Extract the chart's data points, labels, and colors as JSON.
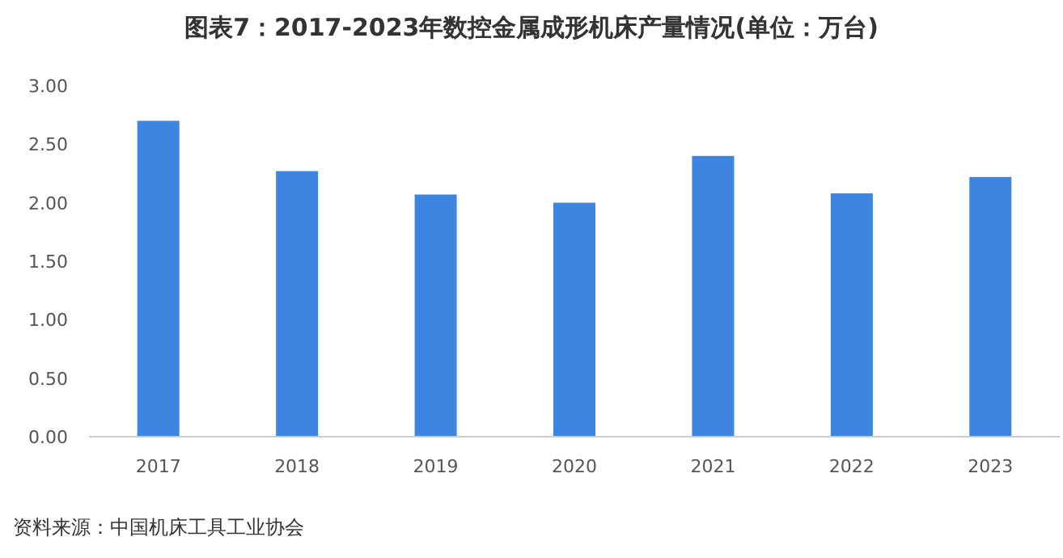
{
  "chart_data": {
    "type": "bar",
    "title": "图表7：2017-2023年数控金属成形机床产量情况(单位：万台)",
    "categories": [
      "2017",
      "2018",
      "2019",
      "2020",
      "2021",
      "2022",
      "2023"
    ],
    "values": [
      2.7,
      2.27,
      2.07,
      2.0,
      2.4,
      2.08,
      2.22
    ],
    "color": "#3d85e0",
    "ylim": [
      0,
      3
    ],
    "yticks": [
      {
        "value": 0,
        "label": "0.00"
      },
      {
        "value": 0.5,
        "label": "0.50"
      },
      {
        "value": 1,
        "label": "1.00"
      },
      {
        "value": 1.5,
        "label": "1.50"
      },
      {
        "value": 2,
        "label": "2.00"
      },
      {
        "value": 2.5,
        "label": "2.50"
      },
      {
        "value": 3,
        "label": "3.00"
      }
    ],
    "grid": false,
    "annotations": [
      "资料来源：中国机床工具工业协会"
    ]
  }
}
